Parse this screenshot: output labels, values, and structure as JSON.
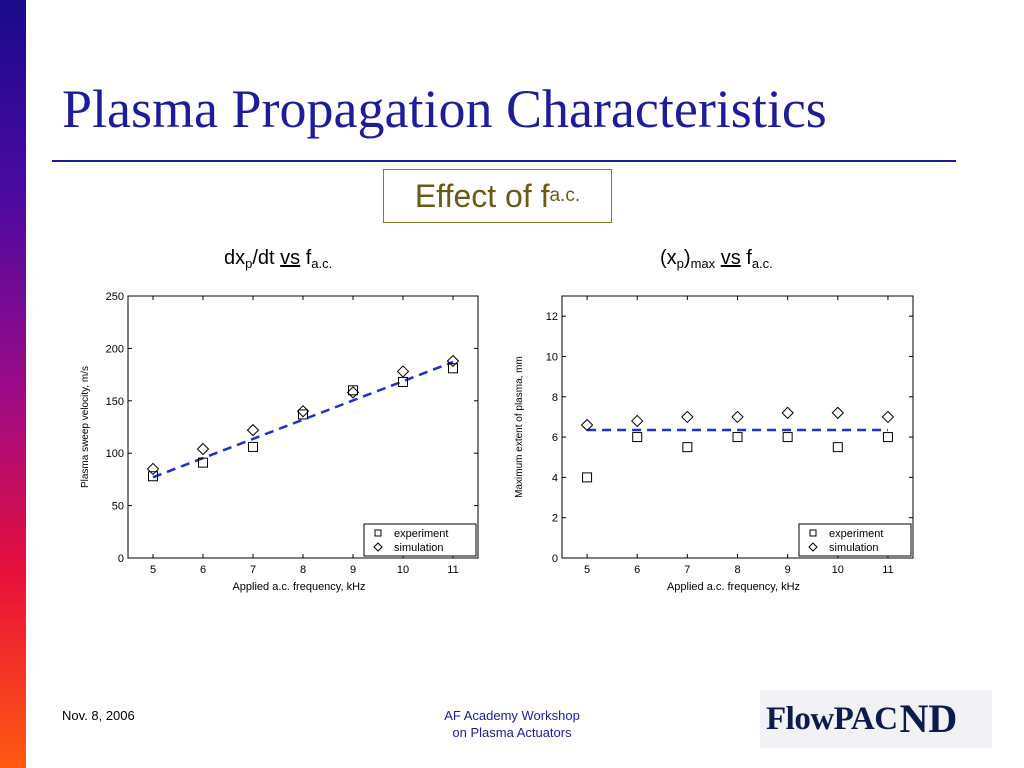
{
  "slide": {
    "title": "Plasma Propagation Characteristics",
    "subtitle": {
      "text": "Effect of f",
      "sub": "a.c."
    },
    "footer": {
      "date": "Nov. 8, 2006",
      "center_line1": "AF Academy Workshop",
      "center_line2": "on Plasma Actuators"
    },
    "logo": {
      "text": "FlowPAC",
      "monogram": "ND"
    },
    "colors": {
      "title": "#1c1c9c",
      "subtitle": "#6b5a14",
      "fit_line": "#1f2fd0",
      "logo": "#0c1b4d"
    }
  },
  "headings": {
    "left": {
      "a": "dx",
      "a_sub": "p",
      "b": "/dt ",
      "vs": "vs",
      "f": " f",
      "f_sub": "a.c."
    },
    "right": {
      "a": "(x",
      "a_sub": "p",
      "b": ")",
      "b_sub": "max",
      "vs": "vs",
      "f": " f",
      "f_sub": "a.c."
    }
  },
  "chart_data": [
    {
      "type": "scatter",
      "xlabel": "Applied a.c. frequency, kHz",
      "ylabel": "Plasma sweep velocity, m/s",
      "xlim": [
        4.5,
        11.5
      ],
      "ylim": [
        0,
        250
      ],
      "xticks": [
        5,
        6,
        7,
        8,
        9,
        10,
        11
      ],
      "yticks": [
        0,
        50,
        100,
        150,
        200,
        250
      ],
      "grid": false,
      "legend_position": "bottom-right",
      "series": [
        {
          "name": "experiment",
          "marker": "square",
          "x": [
            5,
            6,
            7,
            8,
            9,
            10,
            11
          ],
          "values": [
            78,
            91,
            106,
            137,
            160,
            168,
            181
          ]
        },
        {
          "name": "simulation",
          "marker": "diamond",
          "x": [
            5,
            6,
            7,
            8,
            9,
            10,
            11
          ],
          "values": [
            85,
            104,
            122,
            140,
            158,
            178,
            188
          ]
        }
      ],
      "fit_line": {
        "style": "dashed",
        "x": [
          5,
          11
        ],
        "y": [
          77,
          187
        ]
      }
    },
    {
      "type": "scatter",
      "xlabel": "Applied a.c. frequency, kHz",
      "ylabel": "Maximum extent of plasma, mm",
      "xlim": [
        4.5,
        11.5
      ],
      "ylim": [
        0,
        13
      ],
      "xticks": [
        5,
        6,
        7,
        8,
        9,
        10,
        11
      ],
      "yticks": [
        0,
        2,
        4,
        6,
        8,
        10,
        12
      ],
      "grid": false,
      "legend_position": "bottom-right",
      "series": [
        {
          "name": "experiment",
          "marker": "square",
          "x": [
            5,
            6,
            7,
            8,
            9,
            10,
            11
          ],
          "values": [
            4.0,
            6.0,
            5.5,
            6.0,
            6.0,
            5.5,
            6.0
          ]
        },
        {
          "name": "simulation",
          "marker": "diamond",
          "x": [
            5,
            6,
            7,
            8,
            9,
            10,
            11
          ],
          "values": [
            6.6,
            6.8,
            7.0,
            7.0,
            7.2,
            7.2,
            7.0
          ]
        }
      ],
      "fit_line": {
        "style": "dashed",
        "x": [
          5,
          11
        ],
        "y": [
          6.35,
          6.35
        ]
      }
    }
  ]
}
